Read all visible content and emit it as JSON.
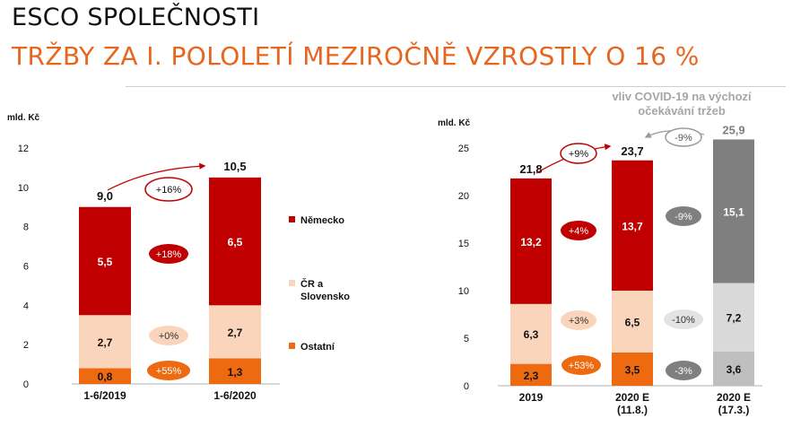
{
  "header": {
    "title": "ESCO SPOLEČNOSTI",
    "subtitle": "TRŽBY ZA I. POLOLETÍ MEZIROČNĚ VZROSTLY O 16 %"
  },
  "colors": {
    "nemecko": "#c00000",
    "cr_slovensko": "#fbd5bb",
    "ostatni": "#ee6a10",
    "covid_dark": "#7f7f7f",
    "covid_mid": "#d9d9d9",
    "covid_light": "#bfbfbf",
    "growth_bubble": "#c00000",
    "accent": "#e8651f"
  },
  "chart_data": [
    {
      "type": "bar",
      "stacked": true,
      "unit_label": "mld. Kč",
      "ylim": [
        0,
        12
      ],
      "yticks": [
        "0",
        "2",
        "4",
        "6",
        "8",
        "10",
        "12"
      ],
      "categories": [
        "1-6/2019",
        "1-6/2020"
      ],
      "series": [
        {
          "name": "Ostatní",
          "values": [
            0.8,
            1.3
          ],
          "labels": [
            "0,8",
            "1,3"
          ]
        },
        {
          "name": "ČR a Slovensko",
          "values": [
            2.7,
            2.7
          ],
          "labels": [
            "2,7",
            "2,7"
          ]
        },
        {
          "name": "Německo",
          "values": [
            5.5,
            6.5
          ],
          "labels": [
            "5,5",
            "6,5"
          ]
        }
      ],
      "totals": [
        "9,0",
        "10,5"
      ],
      "legend": [
        "Německo",
        "ČR a Slovensko",
        "Ostatní"
      ],
      "growth": {
        "total": "+16%",
        "nemecko": "+18%",
        "cr_slovensko": "+0%",
        "ostatni": "+55%"
      }
    },
    {
      "type": "bar",
      "stacked": true,
      "unit_label": "mld. Kč",
      "ylim": [
        0,
        25
      ],
      "yticks": [
        "0",
        "5",
        "10",
        "15",
        "20",
        "25"
      ],
      "categories": [
        {
          "line1": "2019",
          "line2": ""
        },
        {
          "line1": "2020 E",
          "line2": "(11.8.)"
        },
        {
          "line1": "2020 E",
          "line2": "(17.3.)"
        }
      ],
      "stacks": [
        {
          "values": [
            2.3,
            6.3,
            13.2
          ],
          "labels": [
            "2,3",
            "6,3",
            "13,2"
          ],
          "total": "21,8"
        },
        {
          "values": [
            3.5,
            6.5,
            13.7
          ],
          "labels": [
            "3,5",
            "6,5",
            "13,7"
          ],
          "total": "23,7"
        },
        {
          "values": [
            3.6,
            7.2,
            15.1
          ],
          "labels": [
            "3,6",
            "7,2",
            "15,1"
          ],
          "total": "25,9"
        }
      ],
      "growth_2020_vs_2019": {
        "total": "+9%",
        "nemecko": "+4%",
        "cr_slovensko": "+3%",
        "ostatni": "+53%"
      },
      "covid_impact": {
        "note_line1": "vliv COVID-19 na výchozí",
        "note_line2": "očekávání tržeb",
        "total": "-9%",
        "nemecko": "-9%",
        "cr_slovensko": "-10%",
        "ostatni": "-3%"
      }
    }
  ]
}
